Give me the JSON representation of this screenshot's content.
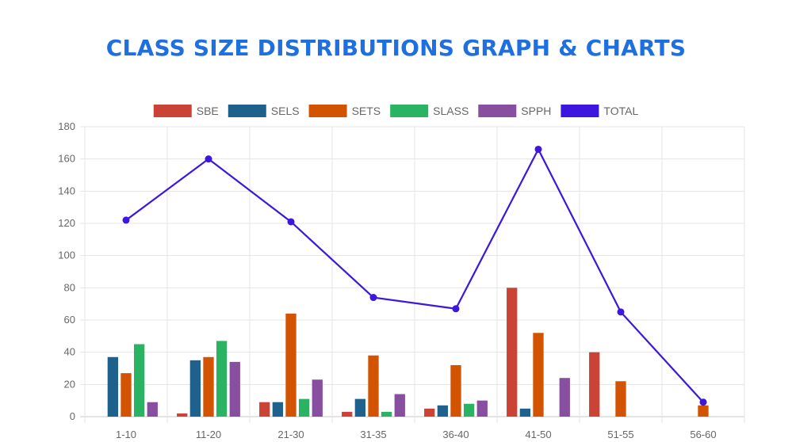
{
  "page": {
    "title": "CLASS SIZE DISTRIBUTIONS GRAPH & CHARTS"
  },
  "chart_data": {
    "type": "bar",
    "categories": [
      "1-10",
      "11-20",
      "21-30",
      "31-35",
      "36-40",
      "41-50",
      "51-55",
      "56-60"
    ],
    "ylim": [
      0,
      180
    ],
    "yticks": [
      0,
      20,
      40,
      60,
      80,
      100,
      120,
      140,
      160,
      180
    ],
    "grid": true,
    "legend_position": "top",
    "series": [
      {
        "name": "SBE",
        "type": "bar",
        "color": "#cb4335",
        "values": [
          0,
          2,
          9,
          3,
          5,
          80,
          40,
          0
        ]
      },
      {
        "name": "SELS",
        "type": "bar",
        "color": "#1f618d",
        "values": [
          37,
          35,
          9,
          11,
          7,
          5,
          0,
          0
        ]
      },
      {
        "name": "SETS",
        "type": "bar",
        "color": "#d35400",
        "values": [
          27,
          37,
          64,
          38,
          32,
          52,
          22,
          7
        ]
      },
      {
        "name": "SLASS",
        "type": "bar",
        "color": "#28b463",
        "values": [
          45,
          47,
          11,
          3,
          8,
          0,
          0,
          0
        ]
      },
      {
        "name": "SPPH",
        "type": "bar",
        "color": "#884ea0",
        "values": [
          9,
          34,
          23,
          14,
          10,
          24,
          0,
          0
        ]
      },
      {
        "name": "TOTAL",
        "type": "line",
        "color": "#3d16e0",
        "values": [
          122,
          160,
          121,
          74,
          67,
          166,
          65,
          9
        ]
      }
    ]
  }
}
